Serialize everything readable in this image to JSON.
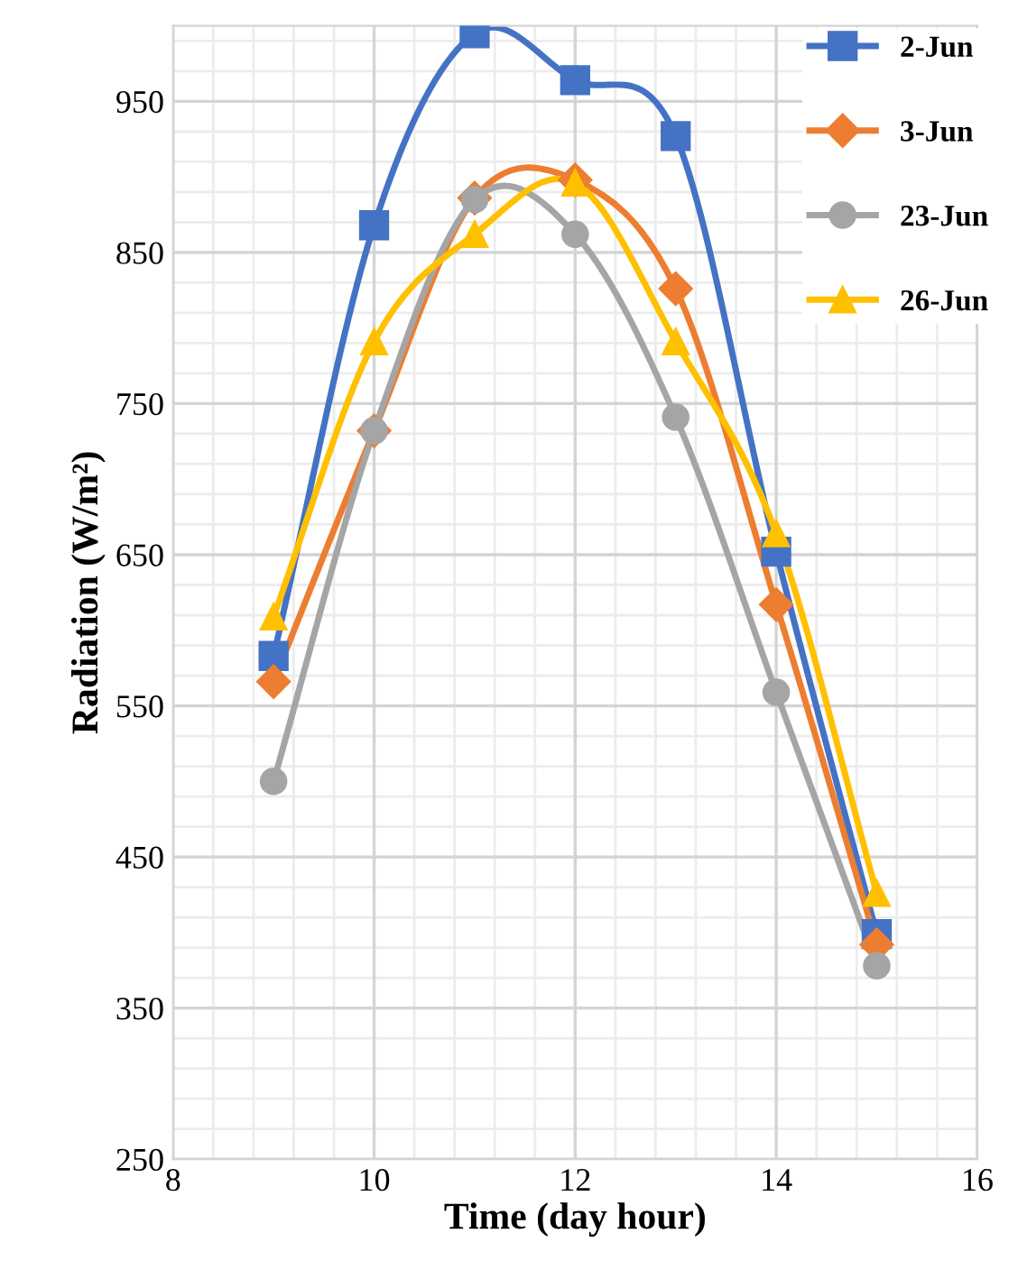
{
  "chart_data": {
    "type": "line",
    "xlabel": "Time (day hour)",
    "ylabel": "Radiation (W/m²)",
    "x": [
      9,
      10,
      11,
      12,
      13,
      14,
      15
    ],
    "series": [
      {
        "name": "2-Jun",
        "color": "#4472c4",
        "marker": "square",
        "values": [
          583,
          868,
          995,
          964,
          927,
          652,
          399
        ]
      },
      {
        "name": "3-Jun",
        "color": "#ed7d31",
        "marker": "diamond",
        "values": [
          566,
          732,
          886,
          898,
          826,
          617,
          392
        ]
      },
      {
        "name": "23-Jun",
        "color": "#a5a5a5",
        "marker": "circle",
        "values": [
          500,
          732,
          885,
          862,
          741,
          559,
          378
        ]
      },
      {
        "name": "26-Jun",
        "color": "#ffc000",
        "marker": "triangle",
        "values": [
          609,
          791,
          862,
          896,
          791,
          664,
          426
        ]
      }
    ],
    "xlim": [
      8,
      16
    ],
    "xticks": [
      8,
      10,
      12,
      14,
      16
    ],
    "ylim": [
      250,
      1000
    ],
    "yticks": [
      250,
      350,
      450,
      550,
      650,
      750,
      850,
      950
    ],
    "grid": true,
    "legend": "top right",
    "line_style": "solid"
  }
}
